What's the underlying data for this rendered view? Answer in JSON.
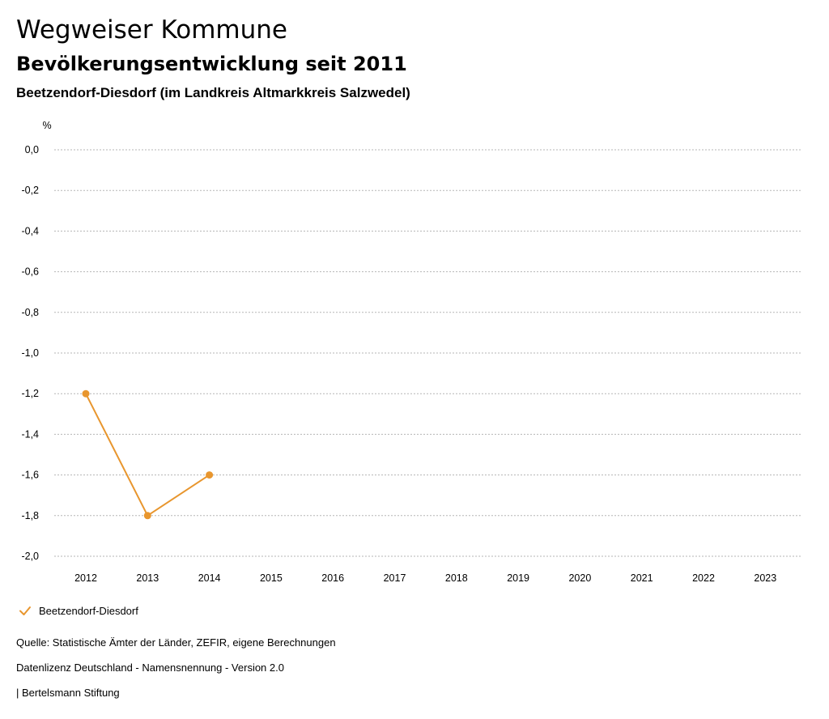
{
  "header": {
    "title": "Wegweiser Kommune",
    "subtitle": "Bevölkerungsentwicklung seit 2011",
    "region": "Beetzendorf-Diesdorf (im Landkreis Altmarkkreis Salzwedel)"
  },
  "chart_data": {
    "type": "line",
    "title": "Bevölkerungsentwicklung seit 2011",
    "ylabel": "%",
    "xlabel": "",
    "categories": [
      "2012",
      "2013",
      "2014",
      "2015",
      "2016",
      "2017",
      "2018",
      "2019",
      "2020",
      "2021",
      "2022",
      "2023"
    ],
    "ylim": [
      -2.0,
      0.0
    ],
    "yticks": [
      "0,0",
      "-0,2",
      "-0,4",
      "-0,6",
      "-0,8",
      "-1,0",
      "-1,2",
      "-1,4",
      "-1,6",
      "-1,8",
      "-2,0"
    ],
    "ytick_values": [
      0.0,
      -0.2,
      -0.4,
      -0.6,
      -0.8,
      -1.0,
      -1.2,
      -1.4,
      -1.6,
      -1.8,
      -2.0
    ],
    "grid": true,
    "legend_position": "bottom-left",
    "series": [
      {
        "name": "Beetzendorf-Diesdorf",
        "color": "#e8962e",
        "values": [
          -1.2,
          -1.8,
          -1.6,
          null,
          null,
          null,
          null,
          null,
          null,
          null,
          null,
          null
        ]
      }
    ]
  },
  "legend": {
    "label": "Beetzendorf-Diesdorf",
    "color": "#e8962e"
  },
  "footer": {
    "source": "Quelle: Statistische Ämter der Länder, ZEFIR, eigene Berechnungen",
    "license": "Datenlizenz Deutschland - Namensnennung - Version 2.0",
    "publisher": "| Bertelsmann Stiftung"
  }
}
